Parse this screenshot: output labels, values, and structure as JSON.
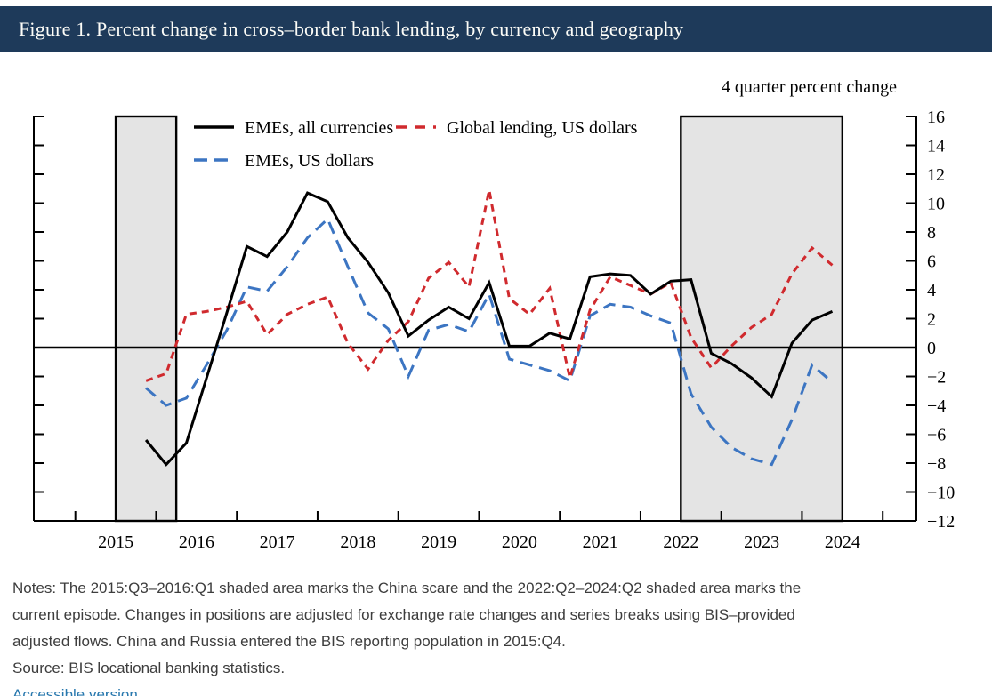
{
  "header": {
    "title": "Figure 1. Percent change in cross–border bank lending, by currency and geography"
  },
  "chart_data": {
    "type": "line",
    "unit_label": "4 quarter percent change",
    "xlabel": "",
    "ylabel": "4 quarter percent change",
    "ylim": [
      -12,
      16
    ],
    "y_ticks": [
      16,
      14,
      12,
      10,
      8,
      6,
      4,
      2,
      0,
      -2,
      -4,
      -6,
      -8,
      -10,
      -12
    ],
    "x_year_ticks": [
      2015,
      2016,
      2017,
      2018,
      2019,
      2020,
      2021,
      2022,
      2023,
      2024,
      2025
    ],
    "x_year_labels": [
      "2015",
      "2016",
      "2017",
      "2018",
      "2019",
      "2020",
      "2021",
      "2022",
      "2023",
      "2024"
    ],
    "grid": false,
    "legend_position": "top-left",
    "quarters": [
      "2015:Q4",
      "2016:Q1",
      "2016:Q2",
      "2016:Q3",
      "2016:Q4",
      "2017:Q1",
      "2017:Q2",
      "2017:Q3",
      "2017:Q4",
      "2018:Q1",
      "2018:Q2",
      "2018:Q3",
      "2018:Q4",
      "2019:Q1",
      "2019:Q2",
      "2019:Q3",
      "2019:Q4",
      "2020:Q1",
      "2020:Q2",
      "2020:Q3",
      "2020:Q4",
      "2021:Q1",
      "2021:Q2",
      "2021:Q3",
      "2021:Q4",
      "2022:Q1",
      "2022:Q2",
      "2022:Q3",
      "2022:Q4",
      "2023:Q1",
      "2023:Q2",
      "2023:Q3",
      "2023:Q4",
      "2024:Q1",
      "2024:Q2"
    ],
    "series": [
      {
        "name": "EMEs, all currencies",
        "color": "#000000",
        "style": "solid",
        "values": [
          -6.4,
          -8.1,
          -6.6,
          -2.1,
          2.4,
          7.0,
          6.3,
          8.0,
          10.7,
          10.1,
          7.6,
          5.9,
          3.8,
          0.8,
          1.9,
          2.8,
          2.0,
          4.5,
          0.1,
          0.1,
          1.0,
          0.6,
          4.9,
          5.1,
          5.0,
          3.7,
          4.6,
          4.7,
          -0.4,
          -1.1,
          -2.1,
          -3.4,
          0.3,
          1.9,
          2.5
        ]
      },
      {
        "name": "EMEs, US dollars",
        "color": "#3c75c2",
        "style": "dashed",
        "values": [
          -2.8,
          -4.0,
          -3.5,
          -1.2,
          1.2,
          4.2,
          3.9,
          5.6,
          7.6,
          8.9,
          5.6,
          2.4,
          1.3,
          -2.0,
          1.2,
          1.6,
          1.1,
          3.7,
          -0.8,
          -1.2,
          -1.6,
          -2.3,
          2.2,
          3.0,
          2.8,
          2.2,
          1.7,
          -3.2,
          -5.5,
          -6.9,
          -7.7,
          -8.1,
          -5.0,
          -1.2,
          -2.4
        ]
      },
      {
        "name": "Global lending, US dollars",
        "color": "#d02a2e",
        "style": "dashed",
        "values": [
          -2.3,
          -1.8,
          2.3,
          2.5,
          2.8,
          3.2,
          0.9,
          2.3,
          3.0,
          3.5,
          0.3,
          -1.5,
          0.5,
          1.8,
          4.8,
          5.9,
          4.2,
          10.9,
          3.4,
          2.3,
          4.1,
          -2.1,
          2.6,
          4.9,
          4.3,
          3.7,
          4.5,
          0.7,
          -1.4,
          0.1,
          1.4,
          2.3,
          5.1,
          6.9,
          5.7
        ]
      }
    ],
    "shaded_regions": [
      {
        "label": "China scare",
        "from": "2015:Q3",
        "to": "2016:Q1",
        "x_from_year": 2015.5,
        "x_to_year": 2016.25
      },
      {
        "label": "current episode",
        "from": "2022:Q2",
        "to": "2024:Q2",
        "x_from_year": 2022.5,
        "x_to_year": 2024.5
      }
    ],
    "region_fill": "#e4e4e4"
  },
  "notes": {
    "lines": [
      "Notes: The 2015:Q3–2016:Q1 shaded area marks the China scare and the 2022:Q2–2024:Q2 shaded area marks the",
      "current episode. Changes in positions are adjusted for exchange rate changes and series breaks using BIS–provided",
      "adjusted flows. China and Russia entered the BIS reporting population in 2015:Q4."
    ],
    "source": "Source: BIS locational banking statistics.",
    "link_label": "Accessible version"
  }
}
